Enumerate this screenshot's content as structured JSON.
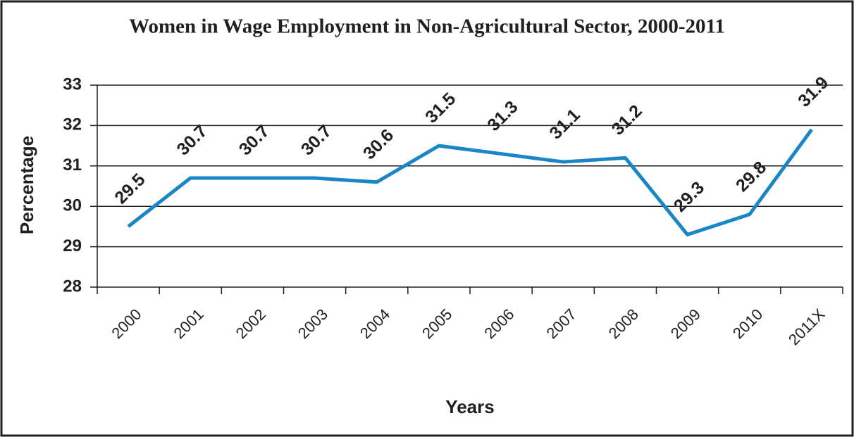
{
  "chart_data": {
    "type": "line",
    "title": "Women in Wage Employment in Non-Agricultural Sector, 2000-2011",
    "x_label": "Years",
    "y_label": "Percentage",
    "categories": [
      "2000",
      "2001",
      "2002",
      "2003",
      "2004",
      "2005",
      "2006",
      "2007",
      "2008",
      "2009",
      "2010",
      "2011X"
    ],
    "series": [
      {
        "name": "Women in wage employment",
        "color": "#1a86c8",
        "values": [
          29.5,
          30.7,
          30.7,
          30.7,
          30.6,
          31.5,
          31.3,
          31.1,
          31.2,
          29.3,
          29.8,
          31.9
        ]
      }
    ],
    "ylim": [
      28,
      33
    ],
    "yticks": [
      28,
      29,
      30,
      31,
      32,
      33
    ],
    "grid": true
  }
}
